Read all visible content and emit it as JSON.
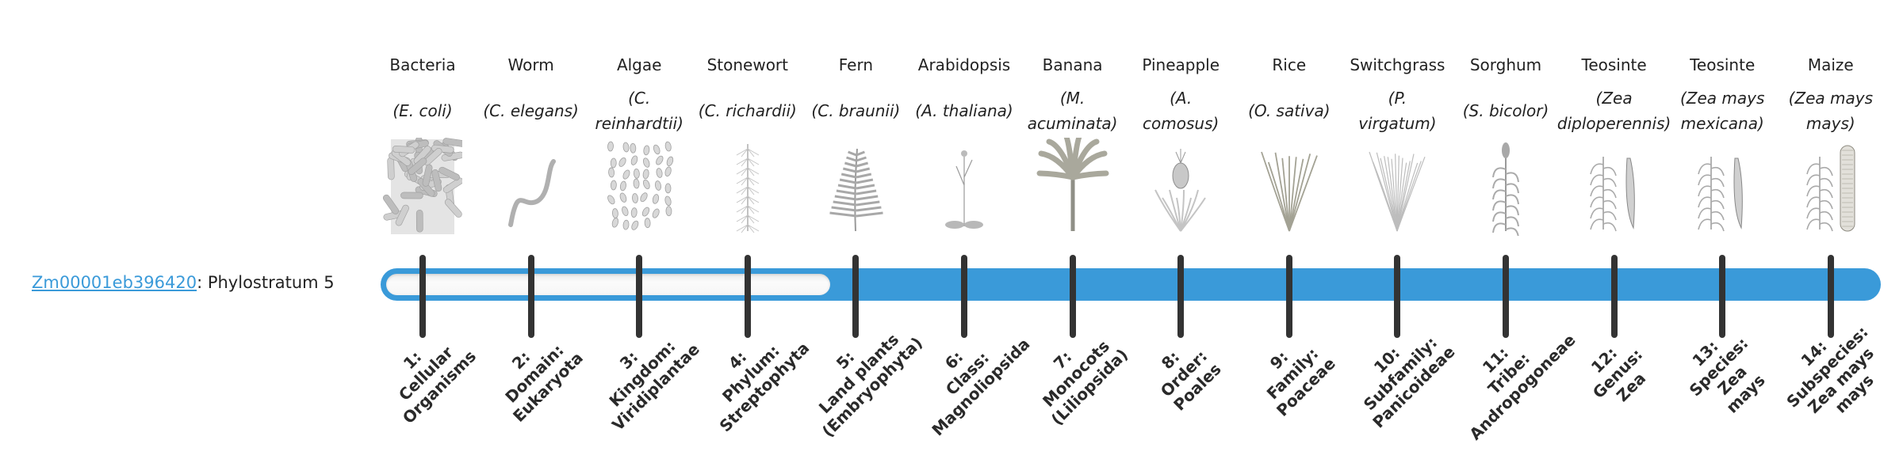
{
  "gene": {
    "id": "Zm00001eb396420",
    "separator": ": ",
    "phylostratum_label": "Phylostratum 5"
  },
  "phylostratum": {
    "value": 5,
    "max": 14
  },
  "colors": {
    "accent": "#3a9ad9",
    "tick": "#333333",
    "empty_track": "#f6f6f6"
  },
  "organisms": [
    {
      "common": "Bacteria",
      "sci": [
        "(E. coli)"
      ],
      "icon": "bacteria-icon"
    },
    {
      "common": "Worm",
      "sci": [
        "(C. elegans)"
      ],
      "icon": "worm-icon"
    },
    {
      "common": "Algae",
      "sci": [
        "(C.",
        "reinhardtii)"
      ],
      "icon": "algae-icon"
    },
    {
      "common": "Stonewort",
      "sci": [
        "(C. richardii)"
      ],
      "icon": "stonewort-icon"
    },
    {
      "common": "Fern",
      "sci": [
        "(C. braunii)"
      ],
      "icon": "fern-icon"
    },
    {
      "common": "Arabidopsis",
      "sci": [
        "(A. thaliana)"
      ],
      "icon": "arabidopsis-icon"
    },
    {
      "common": "Banana",
      "sci": [
        "(M.",
        "acuminata)"
      ],
      "icon": "banana-icon"
    },
    {
      "common": "Pineapple",
      "sci": [
        "(A.",
        "comosus)"
      ],
      "icon": "pineapple-icon"
    },
    {
      "common": "Rice",
      "sci": [
        "(O. sativa)"
      ],
      "icon": "rice-icon"
    },
    {
      "common": "Switchgrass",
      "sci": [
        "(P.",
        "virgatum)"
      ],
      "icon": "switchgrass-icon"
    },
    {
      "common": "Sorghum",
      "sci": [
        "(S. bicolor)"
      ],
      "icon": "sorghum-icon"
    },
    {
      "common": "Teosinte",
      "sci": [
        "(Zea",
        "diploperennis)"
      ],
      "icon": "teosinte-icon"
    },
    {
      "common": "Teosinte",
      "sci": [
        "(Zea mays",
        "mexicana)"
      ],
      "icon": "teosinte-icon"
    },
    {
      "common": "Maize",
      "sci": [
        "(Zea mays",
        "mays)"
      ],
      "icon": "maize-icon"
    }
  ],
  "ranks": [
    [
      "1:",
      "Cellular",
      "Organisms"
    ],
    [
      "2:",
      "Domain:",
      "Eukaryota"
    ],
    [
      "3:",
      "Kingdom:",
      "Viridiplantae"
    ],
    [
      "4:",
      "Phylum:",
      "Streptophyta"
    ],
    [
      "5:",
      "Land plants",
      "(Embryophyta)"
    ],
    [
      "6:",
      "Class:",
      "Magnoliopsida"
    ],
    [
      "7:",
      "Monocots",
      "(Liliopsida)"
    ],
    [
      "8:",
      "Order:",
      "Poales"
    ],
    [
      "9:",
      "Family:",
      "Poaceae"
    ],
    [
      "10:",
      "Subfamily:",
      "Panicoideae"
    ],
    [
      "11:",
      "Tribe:",
      "Andropogoneae"
    ],
    [
      "12:",
      "Genus:",
      "Zea"
    ],
    [
      "13:",
      "Species:",
      "Zea",
      "mays"
    ],
    [
      "14:",
      "Subspecies:",
      "Zea mays",
      "mays"
    ]
  ]
}
